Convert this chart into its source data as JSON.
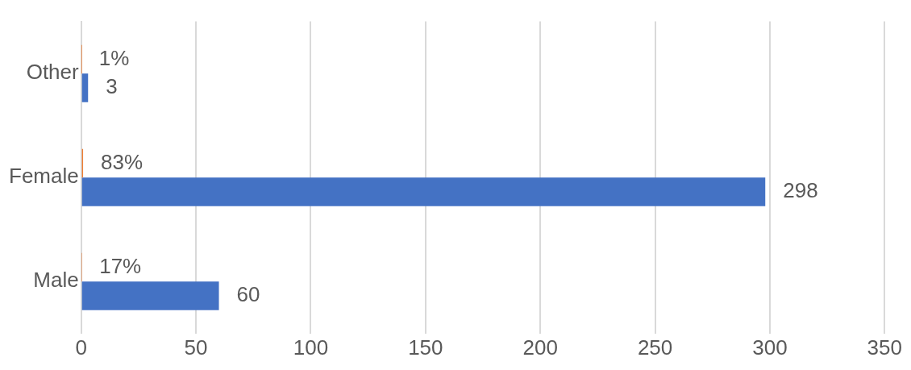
{
  "chart_data": {
    "type": "bar",
    "orientation": "horizontal",
    "categories": [
      "Other",
      "Female",
      "Male"
    ],
    "series": [
      {
        "color": "#ed7d31",
        "values": [
          0.01,
          0.83,
          0.17
        ],
        "value_labels": [
          "1%",
          "83%",
          "17%"
        ]
      },
      {
        "color": "#4472c4",
        "values": [
          3,
          298,
          60
        ],
        "value_labels": [
          "3",
          "298",
          "60"
        ]
      }
    ],
    "xlim": [
      0,
      350
    ],
    "xticks": [
      0,
      50,
      100,
      150,
      200,
      250,
      300,
      350
    ],
    "grid": "x",
    "legend": false
  }
}
